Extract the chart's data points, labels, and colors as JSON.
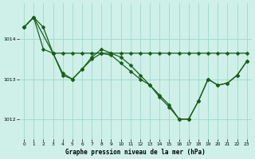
{
  "title": "Graphe pression niveau de la mer (hPa)",
  "bg_color": "#cef0e8",
  "grid_color": "#a0d8cc",
  "line_color": "#1a5c1a",
  "xlim": [
    -0.5,
    23.5
  ],
  "ylim": [
    1011.5,
    1014.9
  ],
  "yticks": [
    1012,
    1013,
    1014
  ],
  "xticks": [
    0,
    1,
    2,
    3,
    4,
    5,
    6,
    7,
    8,
    9,
    10,
    11,
    12,
    13,
    14,
    15,
    16,
    17,
    18,
    19,
    20,
    21,
    22,
    23
  ],
  "series1": {
    "x": [
      0,
      1,
      2,
      3,
      4,
      5,
      6,
      7,
      8,
      9,
      10,
      11,
      12,
      13,
      14,
      15,
      16,
      17,
      18,
      19,
      20,
      21,
      22,
      23
    ],
    "y": [
      1014.3,
      1014.55,
      1013.75,
      1013.65,
      1013.15,
      1013.0,
      1013.25,
      1013.5,
      1013.65,
      1013.6,
      1013.4,
      1013.2,
      1013.0,
      1012.85,
      1012.6,
      1012.35,
      1012.0,
      1012.0,
      1012.45,
      1013.0,
      1012.85,
      1012.9,
      1013.1,
      1013.45
    ]
  },
  "series2": {
    "x": [
      0,
      1,
      2,
      3,
      4,
      5,
      6,
      7,
      8,
      9,
      10,
      11,
      12,
      13,
      14,
      15,
      16,
      17,
      18,
      19,
      20,
      21,
      22,
      23
    ],
    "y": [
      1014.3,
      1014.55,
      1014.3,
      1013.65,
      1013.65,
      1013.65,
      1013.65,
      1013.65,
      1013.65,
      1013.65,
      1013.65,
      1013.65,
      1013.65,
      1013.65,
      1013.65,
      1013.65,
      1013.65,
      1013.65,
      1013.65,
      1013.65,
      1013.65,
      1013.65,
      1013.65,
      1013.65
    ]
  },
  "series3": {
    "x": [
      0,
      1,
      3,
      4,
      5,
      6,
      7,
      8,
      9,
      10,
      11,
      12,
      13,
      14,
      15,
      16,
      17,
      18,
      19,
      20,
      21,
      22,
      23
    ],
    "y": [
      1014.3,
      1014.55,
      1013.65,
      1013.1,
      1013.0,
      1013.25,
      1013.55,
      1013.75,
      1013.65,
      1013.55,
      1013.35,
      1013.1,
      1012.85,
      1012.55,
      1012.3,
      1012.0,
      1012.0,
      1012.45,
      1013.0,
      1012.85,
      1012.9,
      1013.1,
      1013.45
    ]
  }
}
